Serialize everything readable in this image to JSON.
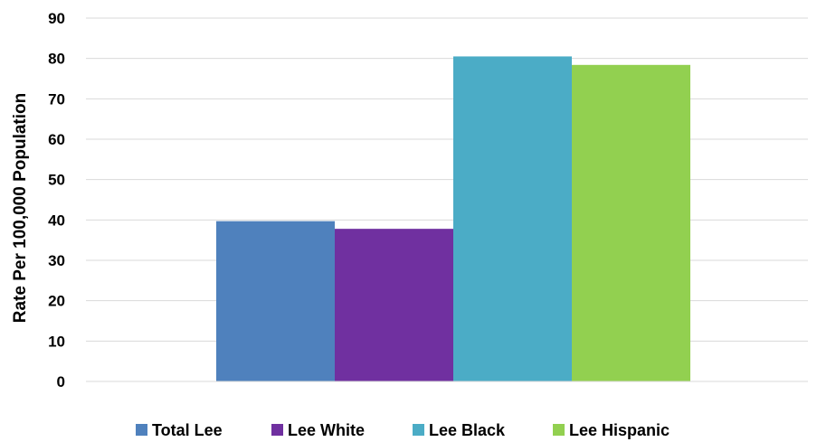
{
  "chart_data": {
    "type": "bar",
    "categories": [
      ""
    ],
    "series": [
      {
        "name": "Total Lee",
        "values": [
          39.7
        ],
        "color": "#4F81BD"
      },
      {
        "name": "Lee White",
        "values": [
          37.8
        ],
        "color": "#7030A0"
      },
      {
        "name": "Lee Black",
        "values": [
          80.5
        ],
        "color": "#4BACC6"
      },
      {
        "name": "Lee Hispanic",
        "values": [
          78.4
        ],
        "color": "#92D050"
      }
    ],
    "ylabel": "Rate Per 100,000 Population",
    "ylim": [
      0,
      90
    ],
    "yticks": [
      0,
      10,
      20,
      30,
      40,
      50,
      60,
      70,
      80,
      90
    ],
    "grid": true,
    "gridColor": "#D9D9D9",
    "legend": "bottom"
  }
}
